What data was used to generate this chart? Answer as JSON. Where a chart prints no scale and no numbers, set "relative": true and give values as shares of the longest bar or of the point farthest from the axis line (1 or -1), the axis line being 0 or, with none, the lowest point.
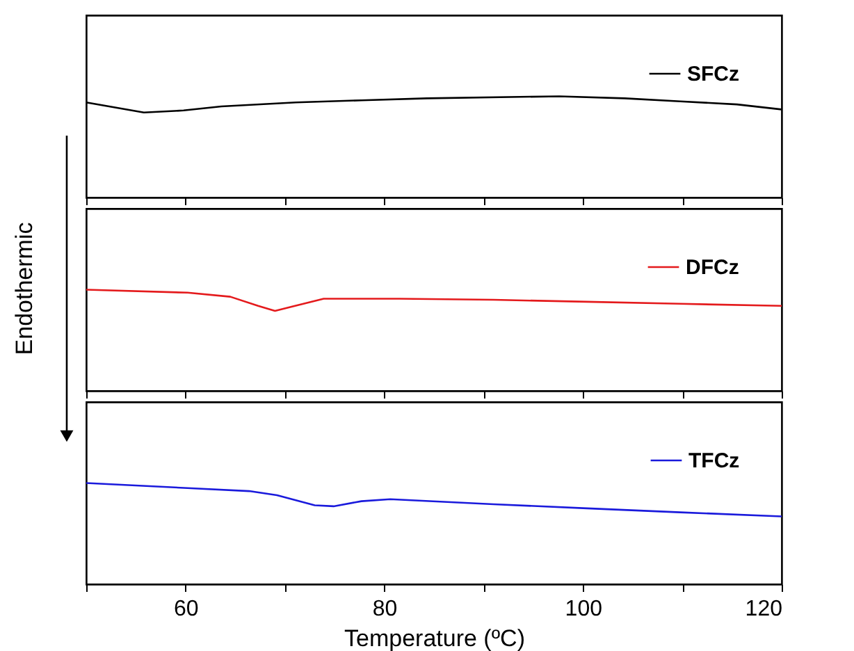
{
  "chart_data": [
    {
      "type": "line",
      "relative": true,
      "xlim": [
        50,
        120
      ],
      "xticks": [
        {
          "value": 50,
          "label": null
        },
        60,
        {
          "value": 70,
          "label": null
        },
        80,
        {
          "value": 90,
          "label": null
        },
        100,
        {
          "value": 110,
          "label": null
        },
        120
      ],
      "tick_labels": false,
      "legend": "top right",
      "grid": false,
      "marker": "none",
      "line_style": "solid",
      "x": [
        50,
        55.8,
        59.8,
        63.6,
        71.1,
        77.7,
        84.3,
        97.6,
        104.2,
        109.8,
        115.5,
        120
      ],
      "series": [
        {
          "name": "SFCz",
          "color": "#000000",
          "values": [
            0.94,
            0.84,
            0.86,
            0.9,
            0.94,
            0.96,
            0.98,
            1.0,
            0.98,
            0.95,
            0.92,
            0.87
          ]
        }
      ]
    },
    {
      "type": "line",
      "relative": true,
      "xlim": [
        50,
        120
      ],
      "xticks": [
        {
          "value": 50,
          "label": null
        },
        60,
        {
          "value": 70,
          "label": null
        },
        80,
        {
          "value": 90,
          "label": null
        },
        100,
        {
          "value": 110,
          "label": null
        },
        120
      ],
      "tick_labels": false,
      "legend": "top right",
      "grid": false,
      "marker": "none",
      "line_style": "solid",
      "ylabel": "Endothermic",
      "x": [
        50,
        60.2,
        64.5,
        67.3,
        69.0,
        70.6,
        73.9,
        81.5,
        91,
        100.4,
        109.8,
        120
      ],
      "series": [
        {
          "name": "DFCz",
          "color": "#e41a1c",
          "values": [
            1.0,
            0.97,
            0.93,
            0.84,
            0.79,
            0.83,
            0.91,
            0.91,
            0.9,
            0.88,
            0.86,
            0.84
          ]
        }
      ]
    },
    {
      "type": "line",
      "relative": true,
      "xlim": [
        50,
        120
      ],
      "xticks": [
        {
          "value": 50,
          "label": null
        },
        60,
        {
          "value": 70,
          "label": null
        },
        80,
        {
          "value": 90,
          "label": null
        },
        100,
        {
          "value": 110,
          "label": null
        },
        120
      ],
      "tick_labels": "x",
      "legend": "top right",
      "grid": false,
      "marker": "none",
      "line_style": "solid",
      "xlabel": "Temperature (ºC)",
      "x": [
        50,
        60.2,
        66.4,
        69.2,
        73.0,
        74.9,
        77.7,
        80.6,
        91,
        100.4,
        109.8,
        120
      ],
      "series": [
        {
          "name": "TFCz",
          "color": "#1a1adc",
          "values": [
            1.0,
            0.95,
            0.92,
            0.88,
            0.78,
            0.77,
            0.82,
            0.84,
            0.79,
            0.75,
            0.71,
            0.67
          ]
        }
      ]
    }
  ]
}
